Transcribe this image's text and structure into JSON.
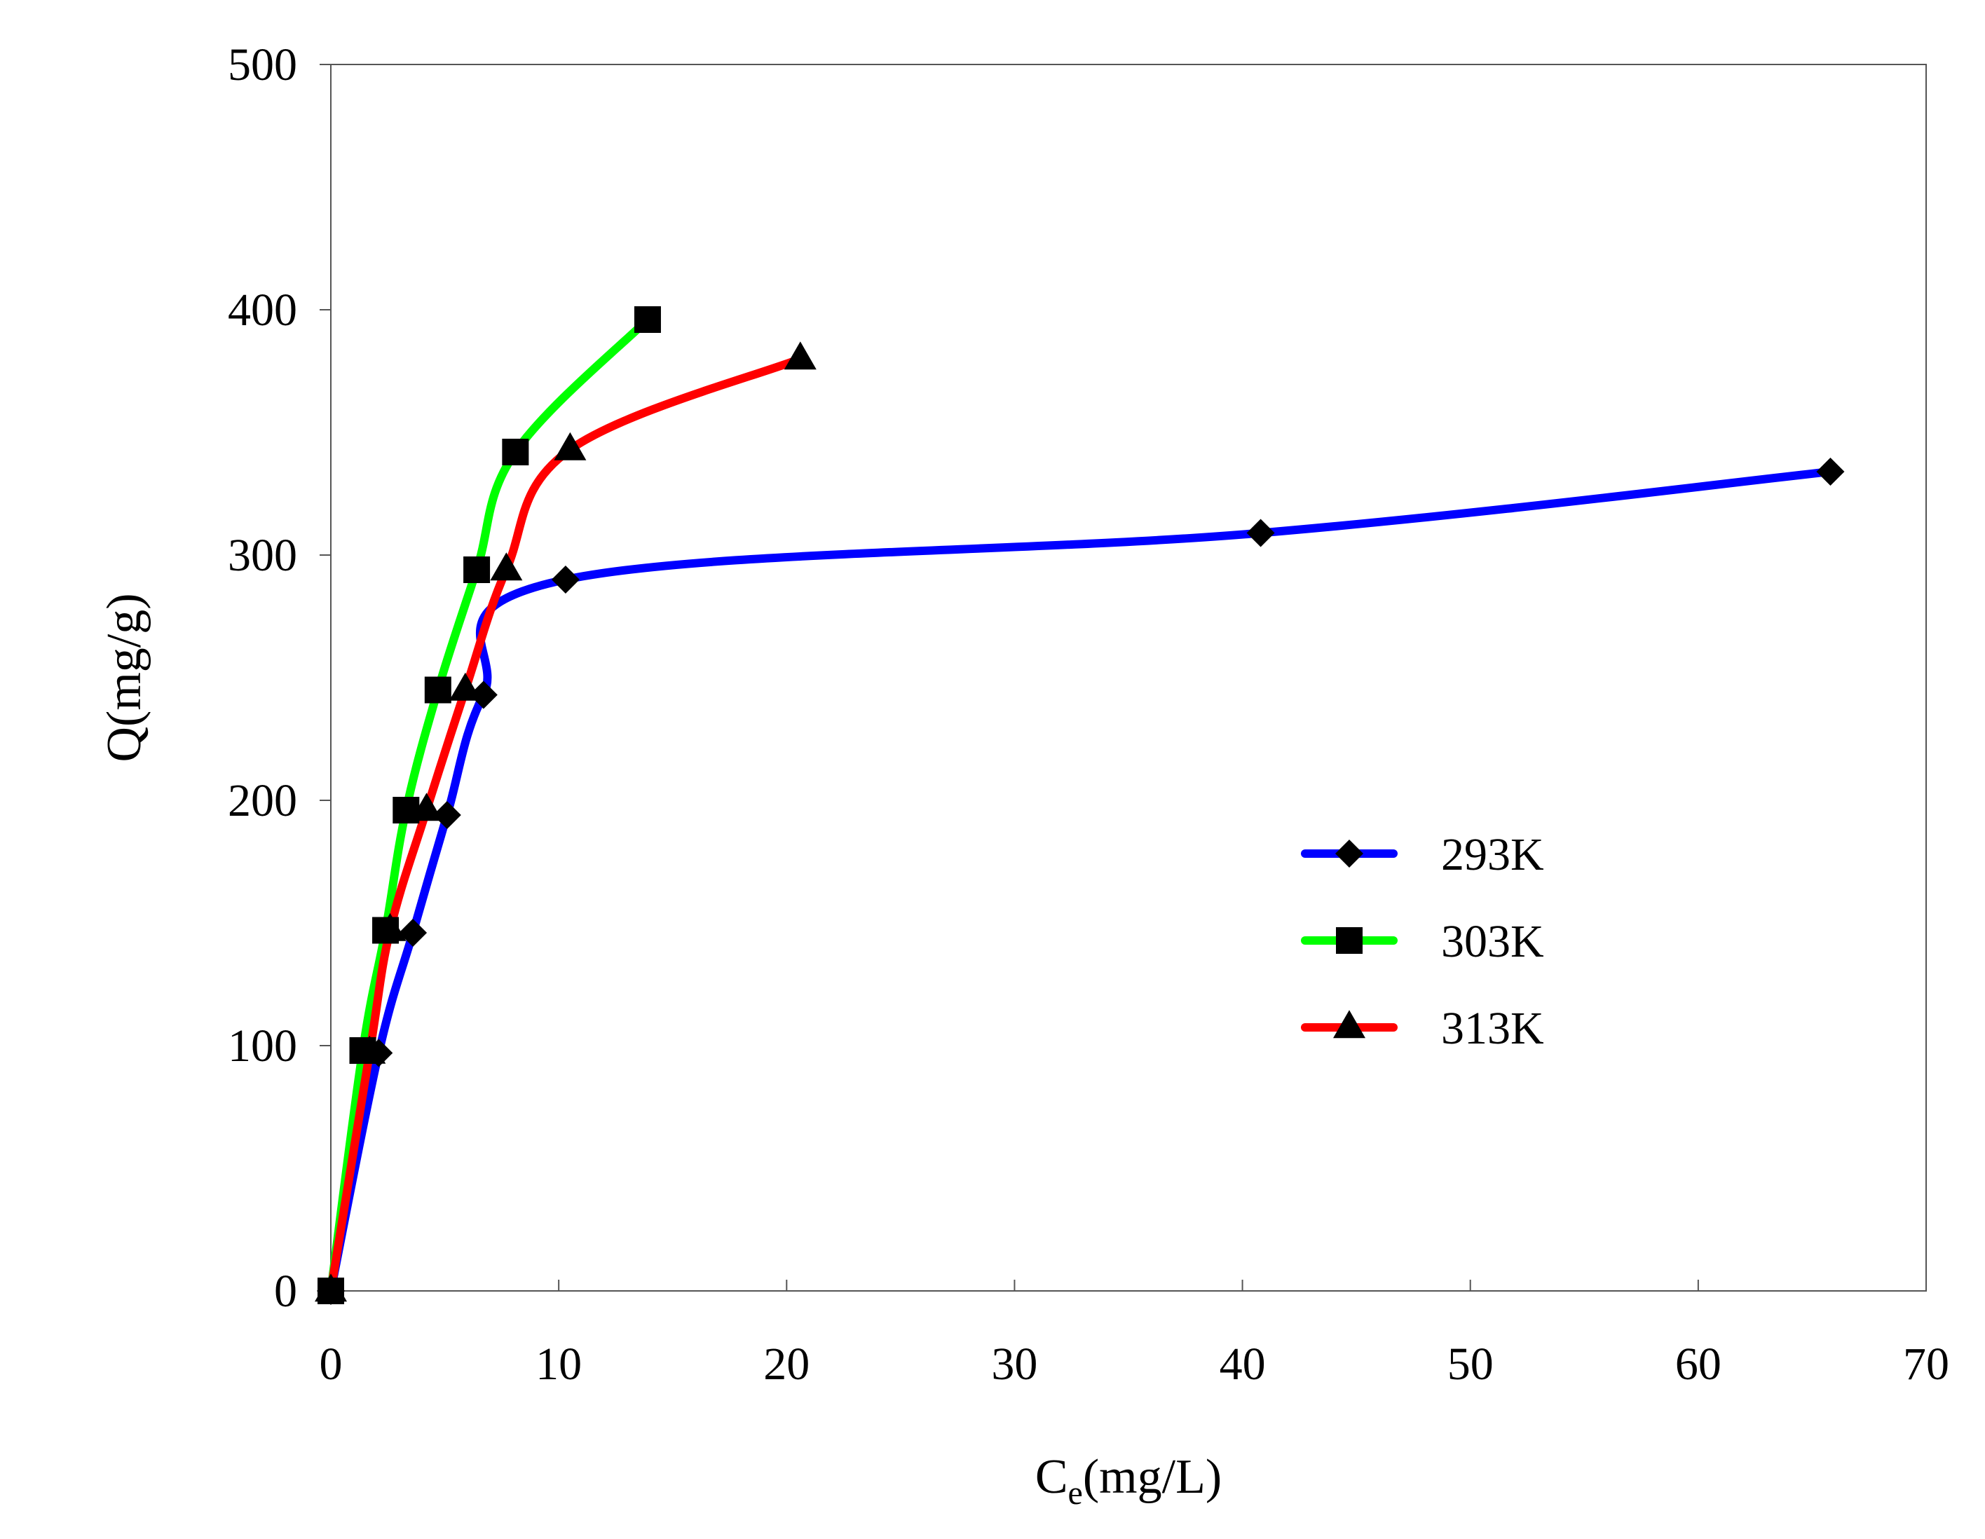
{
  "chart_data": {
    "type": "line",
    "title": "",
    "xlabel_main": "C",
    "xlabel_sub": "e",
    "xlabel_unit": "(mg/L)",
    "ylabel": "Q(mg/g)",
    "xlim": [
      0,
      70
    ],
    "ylim": [
      0,
      500
    ],
    "xticks": [
      0,
      10,
      20,
      30,
      40,
      50,
      60,
      70
    ],
    "yticks": [
      0,
      100,
      200,
      300,
      400,
      500
    ],
    "xtick_labels": [
      "0",
      "10",
      "20",
      "30",
      "40",
      "50",
      "60",
      "70"
    ],
    "ytick_labels": [
      "0",
      "100",
      "200",
      "300",
      "400",
      "500"
    ],
    "grid": false,
    "legend_position": "right-middle",
    "series": [
      {
        "name": "293K",
        "color": "#0000ff",
        "marker": "diamond",
        "x": [
          0,
          2.1,
          3.6,
          5.1,
          6.7,
          10.3,
          40.8,
          65.8
        ],
        "y": [
          0,
          97,
          146,
          194,
          243,
          290,
          309,
          334
        ]
      },
      {
        "name": "303K",
        "color": "#00ff00",
        "marker": "square",
        "x": [
          0,
          1.4,
          2.4,
          3.3,
          4.7,
          6.4,
          8.1,
          13.9
        ],
        "y": [
          0,
          98,
          147,
          196,
          245,
          294,
          342,
          396
        ]
      },
      {
        "name": "313K",
        "color": "#ff0000",
        "marker": "triangle",
        "x": [
          0,
          1.7,
          2.6,
          4.2,
          5.9,
          7.7,
          10.5,
          20.6
        ],
        "y": [
          0,
          97,
          147,
          196,
          245,
          294,
          343,
          380
        ]
      }
    ]
  }
}
